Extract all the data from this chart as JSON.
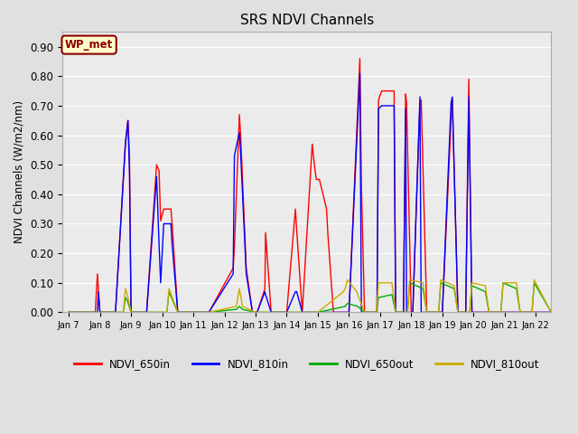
{
  "title": "SRS NDVI Channels",
  "ylabel": "NDVI Channels (W/m2/nm)",
  "annotation": "WP_met",
  "ylim": [
    0.0,
    0.95
  ],
  "yticks": [
    0.0,
    0.1,
    0.2,
    0.3,
    0.4,
    0.5,
    0.6,
    0.7,
    0.8,
    0.9
  ],
  "xtick_positions": [
    0,
    1,
    2,
    3,
    4,
    5,
    6,
    7,
    8,
    9,
    10,
    11,
    12,
    13,
    14,
    15
  ],
  "xtick_labels": [
    "Jan 7",
    "Jan 8",
    "Jan 9",
    "Jan 10",
    "Jan 11",
    "Jan 12",
    "Jan 13",
    "Jan 14",
    "Jan 15",
    "Jan 16",
    "Jan 17",
    "Jan 18",
    "Jan 19",
    "Jan 20",
    "Jan 21",
    "Jan 22"
  ],
  "bg_color": "#e0e0e0",
  "plot_bg_color": "#ebebeb",
  "legend": [
    {
      "label": "NDVI_650in",
      "color": "#ff0000"
    },
    {
      "label": "NDVI_810in",
      "color": "#0000ff"
    },
    {
      "label": "NDVI_650out",
      "color": "#00aa00"
    },
    {
      "label": "NDVI_810out",
      "color": "#ccaa00"
    }
  ],
  "series": {
    "NDVI_650in": {
      "color": "#ff0000",
      "x": [
        0.0,
        0.05,
        0.85,
        0.92,
        0.95,
        1.0,
        1.5,
        1.82,
        1.9,
        1.95,
        2.0,
        2.5,
        2.82,
        2.9,
        2.95,
        3.05,
        3.28,
        3.32,
        3.5,
        4.5,
        5.28,
        5.32,
        5.48,
        5.52,
        5.7,
        5.9,
        6.0,
        6.05,
        6.3,
        6.32,
        6.5,
        6.95,
        7.0,
        7.28,
        7.32,
        7.5,
        7.82,
        7.9,
        7.95,
        8.05,
        8.28,
        8.32,
        8.5,
        8.95,
        9.0,
        9.35,
        9.4,
        9.5,
        9.75,
        9.9,
        9.95,
        10.05,
        10.45,
        10.5,
        10.75,
        10.82,
        10.85,
        11.0,
        11.05,
        11.28,
        11.32,
        11.5,
        11.95,
        12.0,
        12.28,
        12.32,
        12.5,
        12.75,
        12.85,
        12.95,
        13.0,
        13.28,
        13.32,
        13.5,
        14.0,
        14.5,
        15.0,
        15.5
      ],
      "y": [
        0.0,
        0.0,
        0.0,
        0.13,
        0.08,
        0.0,
        0.0,
        0.58,
        0.65,
        0.53,
        0.0,
        0.0,
        0.5,
        0.48,
        0.31,
        0.35,
        0.35,
        0.3,
        0.0,
        0.0,
        0.15,
        0.22,
        0.67,
        0.6,
        0.15,
        0.0,
        0.0,
        0.0,
        0.08,
        0.27,
        0.0,
        0.0,
        0.0,
        0.35,
        0.28,
        0.0,
        0.57,
        0.49,
        0.45,
        0.45,
        0.35,
        0.27,
        0.0,
        0.0,
        0.0,
        0.86,
        0.43,
        0.0,
        0.0,
        0.0,
        0.72,
        0.75,
        0.75,
        0.0,
        0.0,
        0.74,
        0.71,
        0.0,
        0.0,
        0.71,
        0.72,
        0.0,
        0.0,
        0.0,
        0.65,
        0.72,
        0.0,
        0.0,
        0.79,
        0.0,
        0.0,
        0.0,
        0.0,
        0.0,
        0.0,
        0.0,
        0.0,
        0.0
      ]
    },
    "NDVI_810in": {
      "color": "#0000ff",
      "x": [
        0.0,
        0.05,
        0.85,
        0.92,
        0.95,
        1.0,
        1.5,
        1.82,
        1.9,
        1.95,
        2.0,
        2.5,
        2.82,
        2.9,
        2.95,
        3.05,
        3.28,
        3.32,
        3.5,
        4.5,
        5.28,
        5.32,
        5.48,
        5.52,
        5.7,
        5.9,
        6.0,
        6.05,
        6.3,
        6.32,
        6.5,
        6.95,
        7.0,
        7.28,
        7.32,
        7.5,
        7.82,
        7.9,
        7.95,
        8.05,
        8.28,
        8.32,
        8.5,
        8.95,
        9.0,
        9.35,
        9.4,
        9.5,
        9.75,
        9.9,
        9.95,
        10.05,
        10.45,
        10.5,
        10.75,
        10.82,
        10.85,
        11.0,
        11.05,
        11.28,
        11.32,
        11.5,
        11.95,
        12.0,
        12.28,
        12.32,
        12.5,
        12.75,
        12.85,
        12.95,
        13.0,
        13.28,
        13.32,
        13.5,
        14.0,
        14.5,
        15.0,
        15.5
      ],
      "y": [
        0.0,
        0.0,
        0.0,
        0.0,
        0.07,
        0.0,
        0.0,
        0.57,
        0.65,
        0.47,
        0.0,
        0.0,
        0.46,
        0.23,
        0.1,
        0.3,
        0.3,
        0.23,
        0.0,
        0.0,
        0.13,
        0.53,
        0.61,
        0.54,
        0.13,
        0.0,
        0.0,
        0.0,
        0.07,
        0.06,
        0.0,
        0.0,
        0.0,
        0.07,
        0.07,
        0.0,
        0.0,
        0.0,
        0.0,
        0.0,
        0.0,
        0.0,
        0.0,
        0.0,
        0.0,
        0.81,
        0.0,
        0.0,
        0.0,
        0.0,
        0.69,
        0.7,
        0.7,
        0.0,
        0.0,
        0.69,
        0.0,
        0.0,
        0.0,
        0.73,
        0.0,
        0.0,
        0.0,
        0.0,
        0.71,
        0.73,
        0.0,
        0.0,
        0.73,
        0.0,
        0.0,
        0.0,
        0.0,
        0.0,
        0.0,
        0.0,
        0.0,
        0.0
      ]
    },
    "NDVI_650out": {
      "color": "#00aa00",
      "x": [
        0.0,
        1.75,
        1.82,
        1.88,
        2.0,
        2.5,
        3.15,
        3.22,
        3.5,
        4.5,
        5.38,
        5.48,
        5.58,
        6.0,
        7.0,
        8.0,
        8.88,
        8.95,
        9.28,
        9.5,
        9.88,
        9.95,
        10.38,
        10.5,
        10.88,
        10.95,
        11.38,
        11.5,
        11.88,
        11.95,
        12.38,
        12.5,
        12.88,
        12.95,
        13.38,
        13.5,
        13.88,
        13.95,
        14.38,
        14.5,
        14.88,
        14.95,
        15.5
      ],
      "y": [
        0.0,
        0.0,
        0.05,
        0.04,
        0.0,
        0.0,
        0.0,
        0.07,
        0.0,
        0.0,
        0.01,
        0.02,
        0.01,
        0.0,
        0.0,
        0.0,
        0.02,
        0.03,
        0.02,
        0.0,
        0.0,
        0.05,
        0.06,
        0.0,
        0.0,
        0.1,
        0.08,
        0.0,
        0.0,
        0.1,
        0.08,
        0.0,
        0.0,
        0.09,
        0.07,
        0.0,
        0.0,
        0.1,
        0.08,
        0.0,
        0.0,
        0.1,
        0.0
      ]
    },
    "NDVI_810out": {
      "color": "#ccaa00",
      "x": [
        0.0,
        1.75,
        1.82,
        1.88,
        2.0,
        2.5,
        3.15,
        3.22,
        3.5,
        4.5,
        5.38,
        5.48,
        5.58,
        6.0,
        7.0,
        8.0,
        8.82,
        8.88,
        8.95,
        9.25,
        9.5,
        9.88,
        9.95,
        10.38,
        10.5,
        10.88,
        10.95,
        11.38,
        11.5,
        11.88,
        11.95,
        12.38,
        12.5,
        12.88,
        12.95,
        13.38,
        13.5,
        13.88,
        13.95,
        14.38,
        14.5,
        14.88,
        14.95,
        15.5
      ],
      "y": [
        0.0,
        0.0,
        0.08,
        0.06,
        0.0,
        0.0,
        0.0,
        0.08,
        0.0,
        0.0,
        0.02,
        0.08,
        0.02,
        0.0,
        0.0,
        0.0,
        0.07,
        0.08,
        0.11,
        0.07,
        0.0,
        0.0,
        0.1,
        0.1,
        0.0,
        0.0,
        0.11,
        0.1,
        0.0,
        0.0,
        0.11,
        0.09,
        0.0,
        0.0,
        0.1,
        0.09,
        0.0,
        0.0,
        0.1,
        0.1,
        0.0,
        0.0,
        0.11,
        0.0
      ]
    }
  }
}
